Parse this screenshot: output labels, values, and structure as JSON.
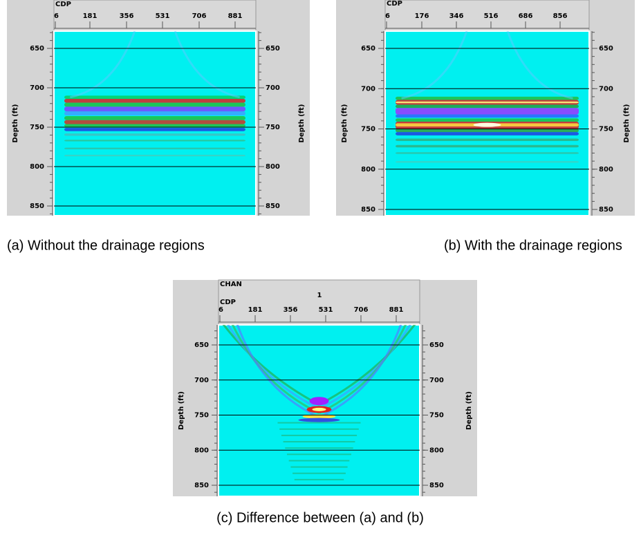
{
  "panels": [
    {
      "header": {
        "x_title": "CDP"
      },
      "x_ticks": [
        "6",
        "181",
        "356",
        "531",
        "706",
        "881"
      ],
      "y_ticks": [
        "650",
        "700",
        "750",
        "800",
        "850"
      ],
      "y_title_left": "Depth (ft)",
      "y_title_right": "Depth (ft)",
      "caption": "(a) Without the drainage regions"
    },
    {
      "header": {
        "x_title": "CDP"
      },
      "x_ticks": [
        "6",
        "176",
        "346",
        "516",
        "686",
        "856"
      ],
      "y_ticks": [
        "650",
        "700",
        "750",
        "800",
        "850"
      ],
      "y_title_left": "Depth (ft)",
      "y_title_right": "Depth (ft)",
      "caption": "(b) With the drainage regions"
    },
    {
      "header": {
        "channel_title": "CHAN",
        "channel": "1",
        "x_title": "CDP"
      },
      "x_ticks": [
        "6",
        "181",
        "356",
        "531",
        "706",
        "881"
      ],
      "y_ticks": [
        "650",
        "700",
        "750",
        "800",
        "850"
      ],
      "y_title_left": "Depth (ft)",
      "y_title_right": "Depth (ft)",
      "caption": "(c) Difference between (a) and (b)"
    }
  ]
}
